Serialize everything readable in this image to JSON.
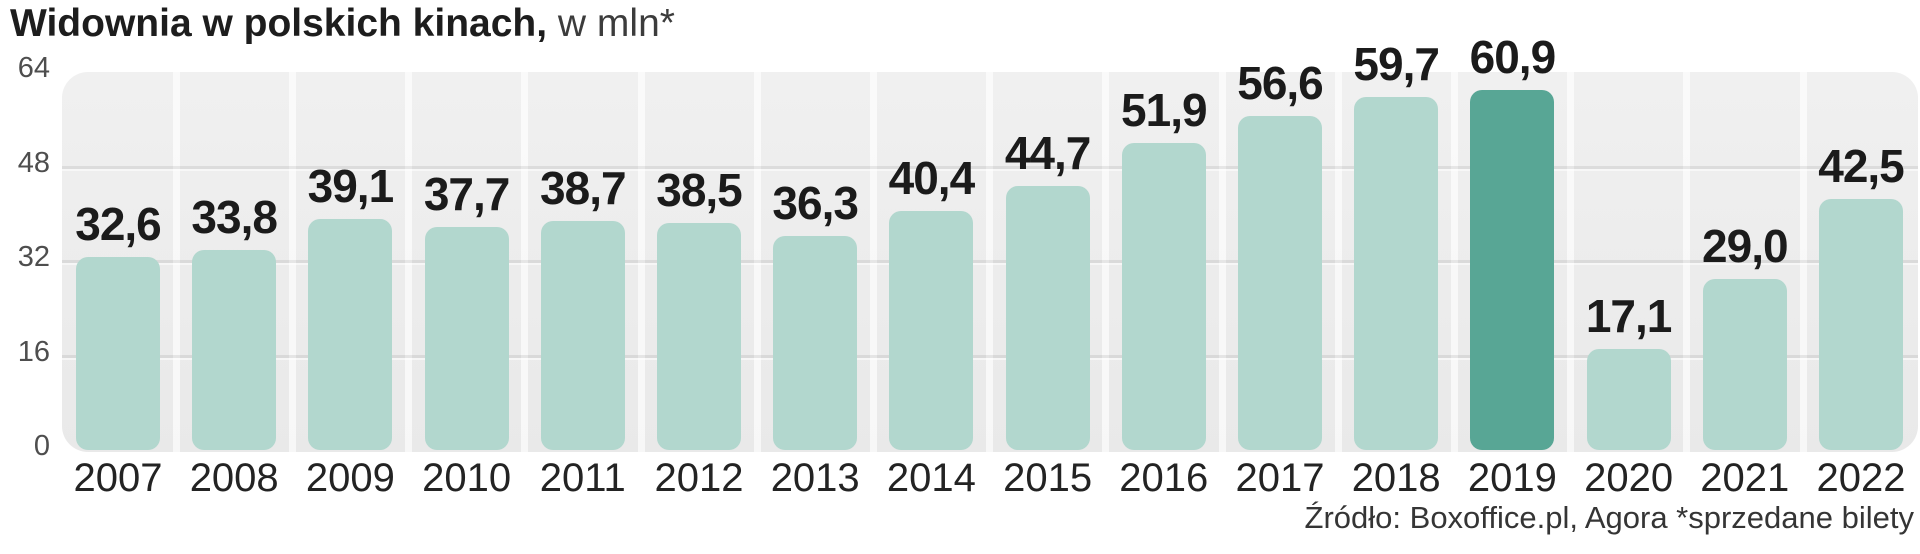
{
  "title": {
    "bold": "Widownia w polskich kinach,",
    "unit": " w mln*"
  },
  "source": "Źródło: Boxoffice.pl, Agora *sprzedane bilety",
  "colors": {
    "bar": "#b2d7ce",
    "bar_highlight": "#58a695",
    "panel_background": "#ebebeb",
    "value_text": "#1b1b1b",
    "axis_text": "#4e4e4e"
  },
  "chart_data": {
    "type": "bar",
    "title": "Widownia w polskich kinach, w mln*",
    "xlabel": "",
    "ylabel": "",
    "categories": [
      "2007",
      "2008",
      "2009",
      "2010",
      "2011",
      "2012",
      "2013",
      "2014",
      "2015",
      "2016",
      "2017",
      "2018",
      "2019",
      "2020",
      "2021",
      "2022"
    ],
    "values": [
      32.6,
      33.8,
      39.1,
      37.7,
      38.7,
      38.5,
      36.3,
      40.4,
      44.7,
      51.9,
      56.6,
      59.7,
      60.9,
      17.1,
      29.0,
      42.5
    ],
    "value_labels": [
      "32,6",
      "33,8",
      "39,1",
      "37,7",
      "38,7",
      "38,5",
      "36,3",
      "40,4",
      "44,7",
      "51,9",
      "56,6",
      "59,7",
      "60,9",
      "17,1",
      "29,0",
      "42,5"
    ],
    "highlight_index": 12,
    "highlight_category": "2019",
    "ylim": [
      0,
      64
    ],
    "yticks": [
      0,
      16,
      32,
      48,
      64
    ],
    "grid": true,
    "legend": "none"
  }
}
